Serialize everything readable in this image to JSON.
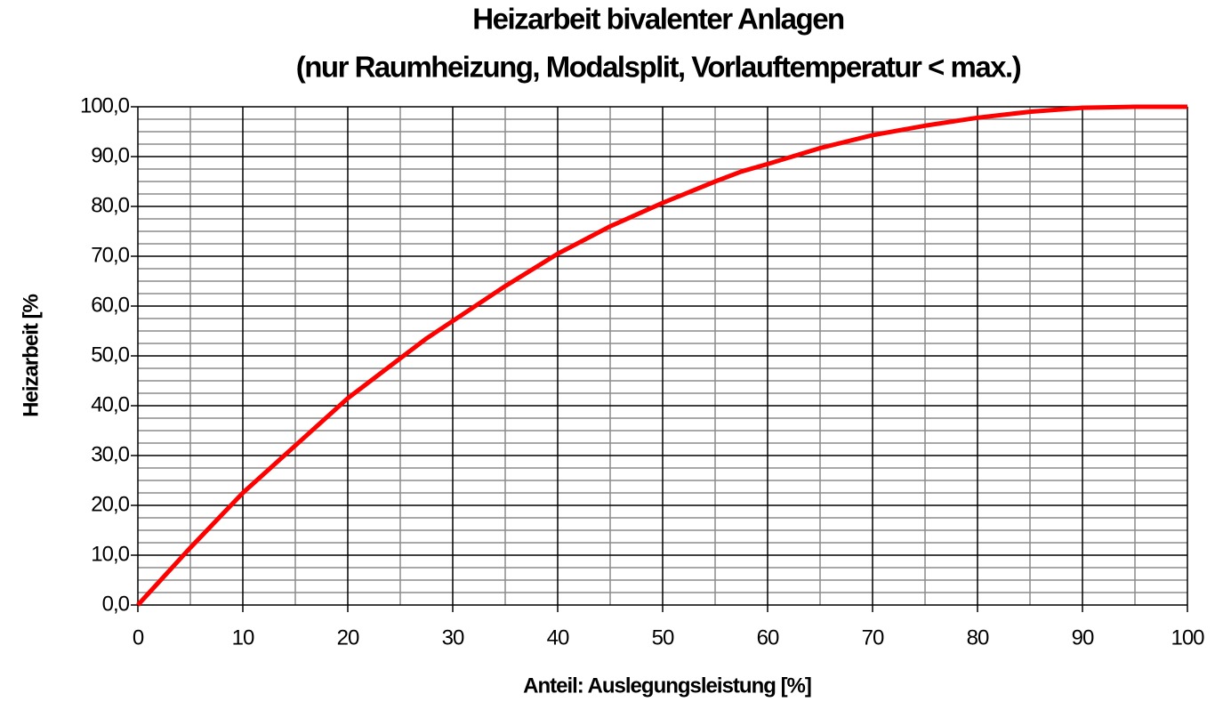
{
  "chart_data": {
    "type": "line",
    "title": "Heizarbeit bivalenter Anlagen",
    "subtitle": "(nur Raumheizung, Modalsplit, Vorlauftemperatur < max.)",
    "x_label": "Anteil: Auslegungsleistung [%]",
    "y_label": "Heizarbeit [%",
    "x": [
      0,
      5,
      10,
      15,
      20,
      25,
      27.5,
      30,
      35,
      40,
      45,
      50,
      55,
      57.5,
      60,
      65,
      70,
      75,
      80,
      85,
      90,
      95,
      100
    ],
    "series": [
      {
        "name": "Heizarbeit",
        "color": "#ff0000",
        "values": [
          0,
          11.5,
          22.5,
          32,
          41.5,
          49.5,
          53.5,
          57,
          64,
          70.5,
          76,
          80.7,
          85,
          87,
          88.5,
          91.7,
          94.3,
          96.2,
          97.8,
          99,
          99.8,
          100,
          100
        ]
      }
    ],
    "xlim": [
      0,
      100
    ],
    "ylim": [
      0,
      100
    ],
    "xticks": [
      0,
      10,
      20,
      30,
      40,
      50,
      60,
      70,
      80,
      90,
      100
    ],
    "yticks": [
      {
        "value": 0,
        "label": "0,0"
      },
      {
        "value": 10,
        "label": "10,0"
      },
      {
        "value": 20,
        "label": "20,0"
      },
      {
        "value": 30,
        "label": "30,0"
      },
      {
        "value": 40,
        "label": "40,0"
      },
      {
        "value": 50,
        "label": "50,0"
      },
      {
        "value": 60,
        "label": "60,0"
      },
      {
        "value": 70,
        "label": "70,0"
      },
      {
        "value": 80,
        "label": "80,0"
      },
      {
        "value": 90,
        "label": "90,0"
      },
      {
        "value": 100,
        "label": "100,0"
      }
    ],
    "x_minor_ticks": [
      5,
      15,
      25,
      35,
      45,
      55,
      65,
      75,
      85,
      95
    ],
    "y_minor_ticks": [
      2.5,
      5,
      7.5,
      12.5,
      15,
      17.5,
      22.5,
      25,
      27.5,
      32.5,
      35,
      37.5,
      42.5,
      45,
      47.5,
      52.5,
      55,
      57.5,
      62.5,
      65,
      67.5,
      72.5,
      75,
      77.5,
      82.5,
      85,
      87.5,
      92.5,
      95,
      97.5
    ],
    "grid": true
  }
}
